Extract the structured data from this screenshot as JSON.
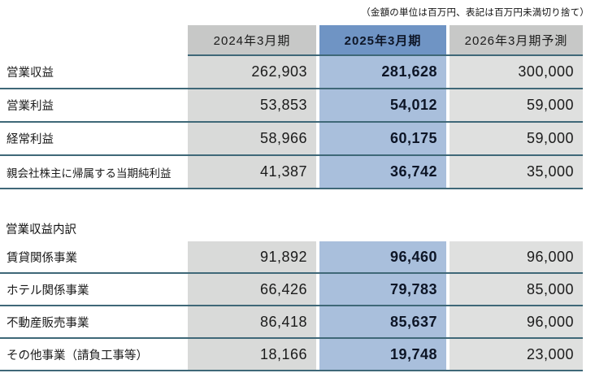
{
  "note": "（金額の単位は百万円、表記は百万円未満切り捨て）",
  "columns": [
    "2024年3月期",
    "2025年3月期",
    "2026年3月期予測"
  ],
  "summary": {
    "rows": [
      {
        "label": "営業収益",
        "values": [
          "262,903",
          "281,628",
          "300,000"
        ]
      },
      {
        "label": "営業利益",
        "values": [
          "53,853",
          "54,012",
          "59,000"
        ]
      },
      {
        "label": "経常利益",
        "values": [
          "58,966",
          "60,175",
          "59,000"
        ]
      },
      {
        "label": "親会社株主に帰属する当期純利益",
        "values": [
          "41,387",
          "36,742",
          "35,000"
        ]
      }
    ]
  },
  "breakdown": {
    "section_title": "営業収益内訳",
    "rows": [
      {
        "label": "賃貸関係事業",
        "values": [
          "91,892",
          "96,460",
          "96,000"
        ]
      },
      {
        "label": "ホテル関係事業",
        "values": [
          "66,426",
          "79,783",
          "85,000"
        ]
      },
      {
        "label": "不動産販売事業",
        "values": [
          "86,418",
          "85,637",
          "96,000"
        ]
      },
      {
        "label": "その他事業（請負工事等）",
        "values": [
          "18,166",
          "19,748",
          "23,000"
        ]
      }
    ]
  },
  "colors": {
    "header_gray": "#c7c8c7",
    "header_blue": "#6f94c4",
    "cell_gray_2024": "#d9dad9",
    "cell_blue_2025": "#a9bfdc",
    "cell_gray_2026": "#dfe0df",
    "row_border": "#3f6878"
  }
}
